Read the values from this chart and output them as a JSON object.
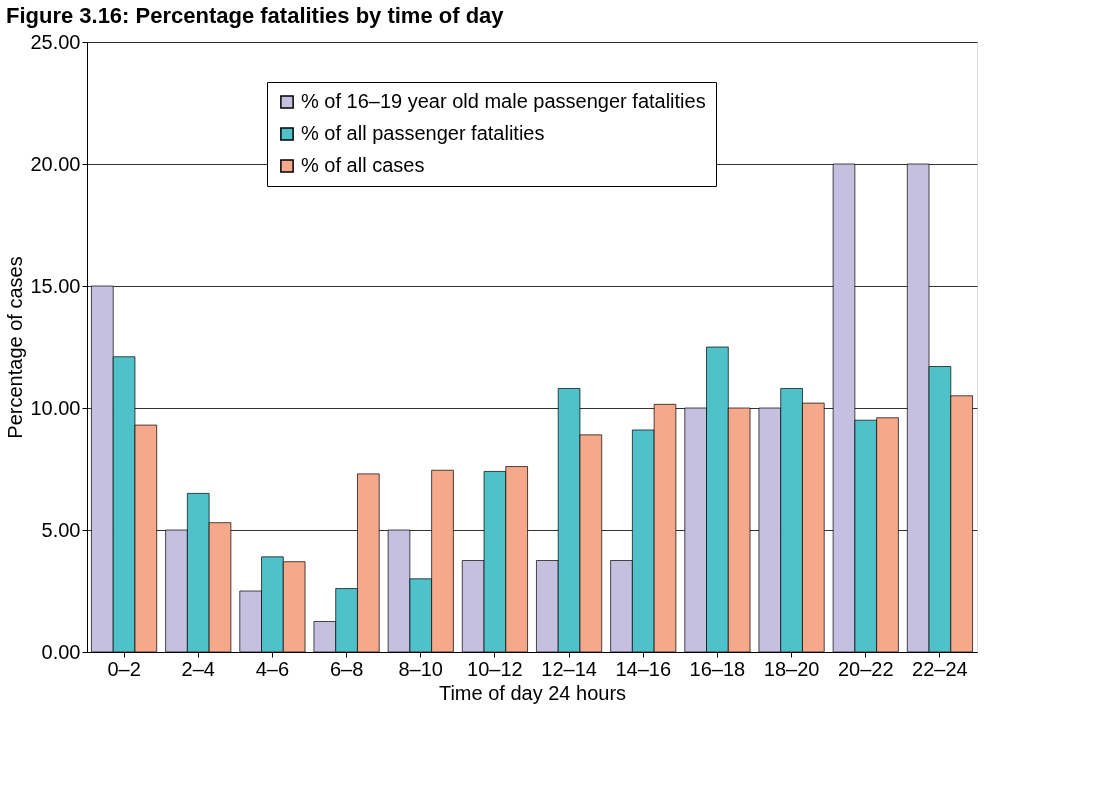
{
  "chart_data": {
    "type": "bar",
    "title": "Figure 3.16:  Percentage fatalities by time of day",
    "xlabel": "Time of day 24 hours",
    "ylabel": "Percentage of cases",
    "categories": [
      "0–2",
      "2–4",
      "4–6",
      "6–8",
      "8–10",
      "10–12",
      "12–14",
      "14–16",
      "16–18",
      "18–20",
      "20–22",
      "22–24"
    ],
    "series": [
      {
        "name": "% of 16–19 year old male passenger fatalities",
        "color": "#c5c0e0",
        "values": [
          15.0,
          5.0,
          2.5,
          1.25,
          5.0,
          3.75,
          3.75,
          3.75,
          10.0,
          10.0,
          20.0,
          20.0
        ]
      },
      {
        "name": "% of all passenger fatalities",
        "color": "#4fc1c9",
        "values": [
          12.1,
          6.5,
          3.9,
          2.6,
          3.0,
          7.4,
          10.8,
          9.1,
          12.5,
          10.8,
          9.5,
          11.7
        ]
      },
      {
        "name": "% of all cases",
        "color": "#f5a88a",
        "values": [
          9.3,
          5.3,
          3.7,
          7.3,
          7.45,
          7.6,
          8.9,
          10.15,
          10.0,
          10.2,
          9.6,
          10.5
        ]
      }
    ],
    "ylim": [
      0,
      25
    ],
    "yticks": [
      {
        "value": 0,
        "label": "0.00"
      },
      {
        "value": 5,
        "label": "5.00"
      },
      {
        "value": 10,
        "label": "10.00"
      },
      {
        "value": 15,
        "label": "15.00"
      },
      {
        "value": 20,
        "label": "20.00"
      },
      {
        "value": 25,
        "label": "25.00"
      }
    ],
    "grid": "y",
    "legend": "top"
  }
}
